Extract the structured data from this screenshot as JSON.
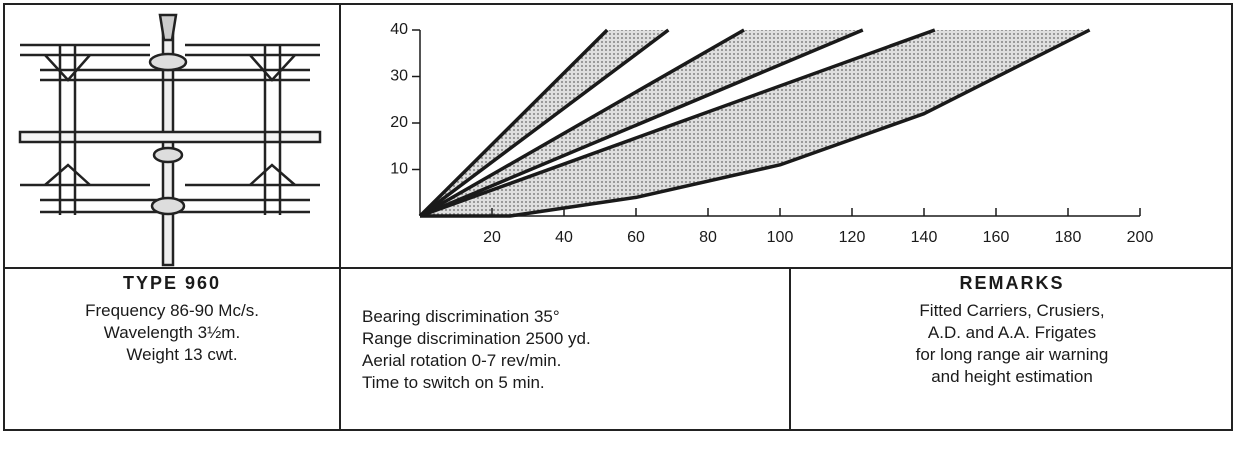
{
  "chart_data": {
    "type": "line",
    "xlim": [
      0,
      200
    ],
    "ylim": [
      0,
      40
    ],
    "xticks": [
      20,
      40,
      60,
      80,
      100,
      120,
      140,
      160,
      180,
      200
    ],
    "yticks": [
      10,
      20,
      30,
      40
    ],
    "color": "#1a1a1a",
    "shade_color": "#b8b8b8",
    "shaded_pairs": [
      [
        0,
        1
      ],
      [
        2,
        3
      ],
      [
        4,
        5
      ]
    ],
    "series": [
      {
        "x": [
          0,
          52
        ],
        "values": [
          0,
          40
        ]
      },
      {
        "x": [
          0,
          69
        ],
        "values": [
          0,
          40
        ]
      },
      {
        "x": [
          0,
          90
        ],
        "values": [
          0,
          40
        ]
      },
      {
        "x": [
          0,
          123
        ],
        "values": [
          0,
          40
        ]
      },
      {
        "x": [
          0,
          143
        ],
        "values": [
          0,
          40
        ]
      },
      {
        "x": [
          0,
          25,
          60,
          100,
          140,
          186
        ],
        "values": [
          0,
          0,
          4,
          11,
          22,
          40
        ]
      }
    ]
  },
  "specs": {
    "title": "TYPE 960",
    "lines": [
      "Frequency 86-90 Mc/s.",
      "Wavelength 3½m.",
      "Weight 13 cwt."
    ]
  },
  "performance": {
    "lines": [
      "Bearing discrimination 35°",
      "Range discrimination 2500 yd.",
      "Aerial rotation 0-7 rev/min.",
      "Time to switch on 5 min."
    ]
  },
  "remarks": {
    "title": "REMARKS",
    "lines": [
      "Fitted Carriers, Crusiers,",
      "A.D. and A.A. Frigates",
      "for long range air warning",
      "and height estimation"
    ]
  }
}
